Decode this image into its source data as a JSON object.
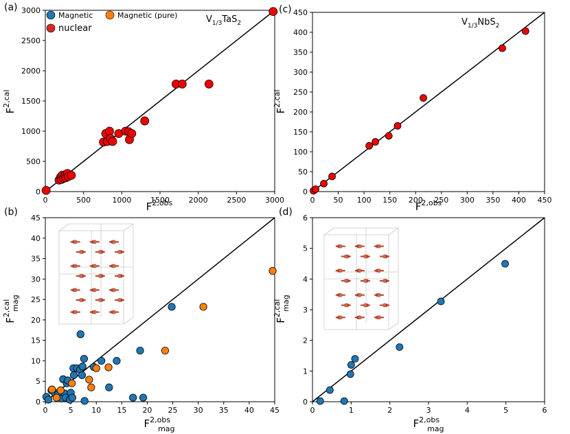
{
  "chart_data": [
    {
      "type": "scatter",
      "panel_label": "(a)",
      "annotation": "V1/3TaS2",
      "xlabel": "F2,obs",
      "ylabel": "F2,cal",
      "xlim": [
        0,
        3000
      ],
      "ylim": [
        0,
        3000
      ],
      "xticks": [
        0,
        500,
        1000,
        1500,
        2000,
        2500,
        3000
      ],
      "yticks": [
        0,
        500,
        1000,
        1500,
        2000,
        2500,
        3000
      ],
      "legend": [
        "Magnetic",
        "Magnetic (pure)",
        "nuclear"
      ],
      "legend_colors": [
        "#1f77b4",
        "#ff7f0e",
        "#d62728"
      ],
      "legend_position": "top-left",
      "series": [
        {
          "name": "nuclear",
          "color": "#ee0000",
          "points": [
            [
              10,
              20
            ],
            [
              180,
              190
            ],
            [
              200,
              240
            ],
            [
              210,
              200
            ],
            [
              220,
              270
            ],
            [
              240,
              220
            ],
            [
              260,
              280
            ],
            [
              270,
              230
            ],
            [
              290,
              300
            ],
            [
              300,
              250
            ],
            [
              340,
              270
            ],
            [
              760,
              820
            ],
            [
              790,
              960
            ],
            [
              810,
              830
            ],
            [
              840,
              1000
            ],
            [
              850,
              880
            ],
            [
              880,
              830
            ],
            [
              960,
              960
            ],
            [
              1050,
              1000
            ],
            [
              1090,
              990
            ],
            [
              1100,
              860
            ],
            [
              1130,
              960
            ],
            [
              1300,
              1170
            ],
            [
              1710,
              1780
            ],
            [
              1790,
              1780
            ],
            [
              2140,
              1780
            ],
            [
              2980,
              2980
            ]
          ]
        }
      ]
    },
    {
      "type": "scatter",
      "panel_label": "(c)",
      "annotation": "V1/3NbS2",
      "xlabel": "F2,obs",
      "ylabel": "F2,cal",
      "xlim": [
        0,
        450
      ],
      "ylim": [
        0,
        450
      ],
      "xticks": [
        0,
        50,
        100,
        150,
        200,
        250,
        300,
        350,
        400,
        450
      ],
      "yticks": [
        0,
        50,
        100,
        150,
        200,
        250,
        300,
        350,
        400,
        450
      ],
      "series": [
        {
          "name": "nuclear",
          "color": "#ee0000",
          "points": [
            [
              2,
              2
            ],
            [
              6,
              6
            ],
            [
              22,
              20
            ],
            [
              38,
              38
            ],
            [
              110,
              115
            ],
            [
              122,
              125
            ],
            [
              148,
              140
            ],
            [
              165,
              165
            ],
            [
              215,
              235
            ],
            [
              368,
              360
            ],
            [
              413,
              403
            ]
          ]
        }
      ]
    },
    {
      "type": "scatter",
      "panel_label": "(b)",
      "xlabel": "F2,obsmag",
      "ylabel": "F2,calmag",
      "xlim": [
        0,
        45
      ],
      "ylim": [
        0,
        45
      ],
      "xticks": [
        0,
        5,
        10,
        15,
        20,
        25,
        30,
        35,
        40,
        45
      ],
      "yticks": [
        0,
        5,
        10,
        15,
        20,
        25,
        30,
        35,
        40,
        45
      ],
      "series": [
        {
          "name": "Magnetic",
          "color": "#1f77b4",
          "points": [
            [
              0.2,
              1.2
            ],
            [
              0.6,
              0.5
            ],
            [
              1.2,
              2.8
            ],
            [
              1.8,
              2.2
            ],
            [
              2.5,
              1.8
            ],
            [
              3.2,
              0.8
            ],
            [
              3.5,
              5.5
            ],
            [
              3.8,
              2.0
            ],
            [
              4.0,
              1.0
            ],
            [
              4.2,
              4.5
            ],
            [
              4.4,
              5.2
            ],
            [
              4.8,
              0.5
            ],
            [
              5.0,
              2.2
            ],
            [
              5.3,
              1.0
            ],
            [
              5.5,
              8.2
            ],
            [
              5.6,
              6.5
            ],
            [
              6.2,
              8.2
            ],
            [
              6.8,
              7.8
            ],
            [
              6.9,
              16.5
            ],
            [
              7.2,
              6.5
            ],
            [
              7.3,
              8.6
            ],
            [
              7.6,
              10.5
            ],
            [
              7.7,
              0.2
            ],
            [
              9.5,
              8.5
            ],
            [
              11.0,
              10.0
            ],
            [
              12.5,
              3.5
            ],
            [
              14.0,
              10.0
            ],
            [
              17.2,
              1.0
            ],
            [
              18.6,
              12.5
            ],
            [
              19.2,
              1.0
            ],
            [
              24.8,
              23.2
            ]
          ]
        },
        {
          "name": "Magnetic (pure)",
          "color": "#ff7f0e",
          "points": [
            [
              1.3,
              3.0
            ],
            [
              2.2,
              1.0
            ],
            [
              3.0,
              2.8
            ],
            [
              5.2,
              4.5
            ],
            [
              8.6,
              5.4
            ],
            [
              9.0,
              3.5
            ],
            [
              10.0,
              8.2
            ],
            [
              12.4,
              8.4
            ],
            [
              23.5,
              12.5
            ],
            [
              31.0,
              23.2
            ],
            [
              44.6,
              32.0
            ]
          ]
        }
      ]
    },
    {
      "type": "scatter",
      "panel_label": "(d)",
      "xlabel": "F2,obsmag",
      "ylabel": "F2,calmag",
      "xlim": [
        0,
        6
      ],
      "ylim": [
        0,
        6
      ],
      "xticks": [
        0,
        1,
        2,
        3,
        4,
        5,
        6
      ],
      "yticks": [
        0,
        1,
        2,
        3,
        4,
        5,
        6
      ],
      "series": [
        {
          "name": "Magnetic",
          "color": "#1f77b4",
          "points": [
            [
              0.2,
              0.02
            ],
            [
              0.45,
              0.38
            ],
            [
              0.82,
              0.02
            ],
            [
              0.98,
              0.9
            ],
            [
              1.0,
              1.2
            ],
            [
              1.1,
              1.4
            ],
            [
              2.25,
              1.78
            ],
            [
              3.32,
              3.27
            ],
            [
              4.98,
              4.5
            ]
          ]
        }
      ]
    }
  ]
}
